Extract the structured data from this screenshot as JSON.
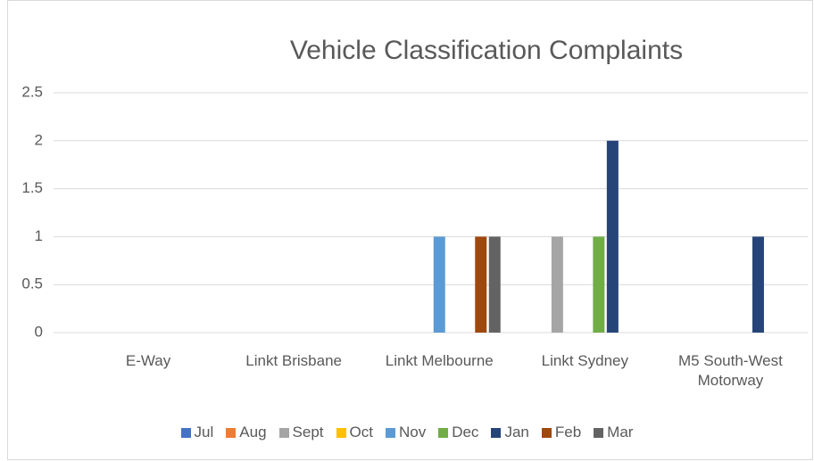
{
  "chart_data": {
    "type": "bar",
    "title": "Vehicle Classification Complaints",
    "categories": [
      "E-Way",
      "Linkt Brisbane",
      "Linkt Melbourne",
      "Linkt Sydney",
      "M5 South-West Motorway"
    ],
    "series": [
      {
        "name": "Jul",
        "color": "#4472c4",
        "values": [
          0,
          0,
          0,
          0,
          0
        ]
      },
      {
        "name": "Aug",
        "color": "#ed7d31",
        "values": [
          0,
          0,
          0,
          0,
          0
        ]
      },
      {
        "name": "Sept",
        "color": "#a5a5a5",
        "values": [
          0,
          0,
          0,
          1,
          0
        ]
      },
      {
        "name": "Oct",
        "color": "#ffc000",
        "values": [
          0,
          0,
          0,
          0,
          0
        ]
      },
      {
        "name": "Nov",
        "color": "#5b9bd5",
        "values": [
          0,
          0,
          1,
          0,
          0
        ]
      },
      {
        "name": "Dec",
        "color": "#70ad47",
        "values": [
          0,
          0,
          0,
          1,
          0
        ]
      },
      {
        "name": "Jan",
        "color": "#264478",
        "values": [
          0,
          0,
          0,
          2,
          1
        ]
      },
      {
        "name": "Feb",
        "color": "#9e480e",
        "values": [
          0,
          0,
          1,
          0,
          0
        ]
      },
      {
        "name": "Mar",
        "color": "#636363",
        "values": [
          0,
          0,
          1,
          0,
          0
        ]
      }
    ],
    "ylim": [
      0,
      2.5
    ],
    "yticks": [
      0,
      0.5,
      1,
      1.5,
      2,
      2.5
    ],
    "grid": true,
    "legend": "bottom"
  }
}
